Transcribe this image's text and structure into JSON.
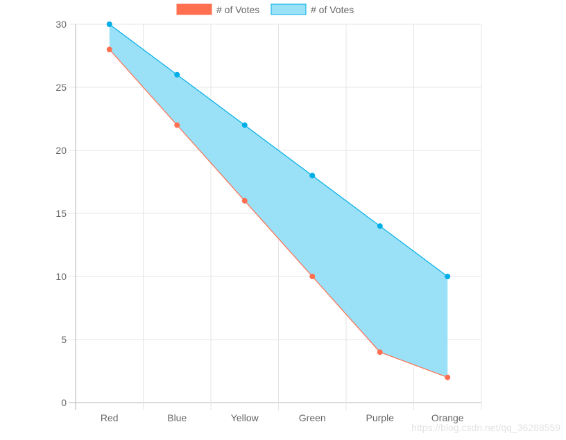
{
  "chart_data": {
    "type": "line",
    "categories": [
      "Red",
      "Blue",
      "Yellow",
      "Green",
      "Purple",
      "Orange"
    ],
    "series": [
      {
        "name": "# of Votes",
        "values": [
          28,
          22,
          16,
          10,
          4,
          2
        ],
        "color": "#ff6f50",
        "fill": "none"
      },
      {
        "name": "# of Votes",
        "values": [
          30,
          26,
          22,
          18,
          14,
          10
        ],
        "color": "#00aee8",
        "fill": "#9ae0f6"
      }
    ],
    "title": "",
    "xlabel": "",
    "ylabel": "",
    "ylim": [
      0,
      30
    ],
    "y_ticks": [
      0,
      5,
      10,
      15,
      20,
      25,
      30
    ],
    "grid": true,
    "legend": "top-center"
  },
  "watermark": "https://blog.csdn.net/qq_36288559"
}
